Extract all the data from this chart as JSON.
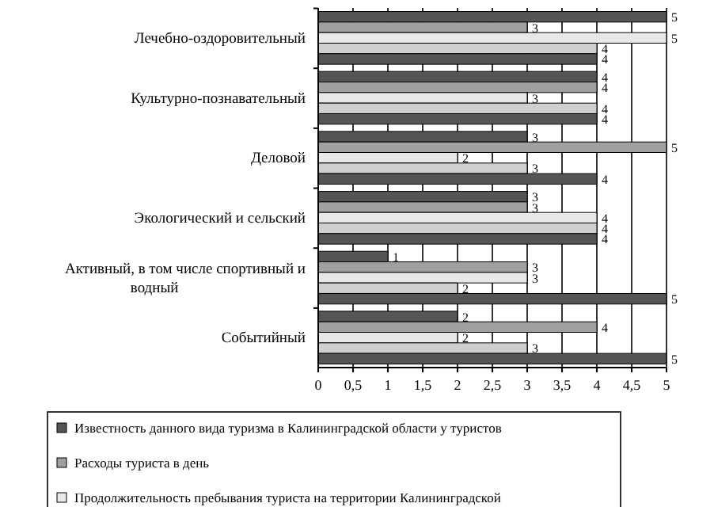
{
  "chart_data": {
    "type": "bar",
    "orientation": "horizontal",
    "categories": [
      "Лечебно-оздоровительный",
      "Культурно-познавательный",
      "Деловой",
      "Экологический и сельский",
      "Активный, в том числе спортивный и водный",
      "Событийный"
    ],
    "series": [
      {
        "name": "Известность данного вида туризма в Калининградской области у туристов",
        "color": "#555555",
        "values": [
          5,
          4,
          3,
          3,
          1,
          2
        ]
      },
      {
        "name": "Расходы туриста в день",
        "color": "#a0a0a0",
        "values": [
          3,
          4,
          5,
          3,
          3,
          4
        ]
      },
      {
        "name": "Продолжительность пребывания туриста на территории Калининградской",
        "color": "#e8e8e8",
        "values": [
          5,
          3,
          2,
          4,
          3,
          2
        ]
      },
      {
        "color": "#cfcfcf",
        "values": [
          4,
          4,
          3,
          4,
          2,
          3
        ]
      },
      {
        "color": "#555555",
        "values": [
          4,
          4,
          4,
          4,
          5,
          5
        ]
      }
    ],
    "xlim": [
      0,
      5
    ],
    "xticks": [
      0,
      {
        "value": 0.5,
        "label": "0,5"
      },
      1,
      {
        "value": 1.5,
        "label": "1,5"
      },
      2,
      {
        "value": 2.5,
        "label": "2,5"
      },
      3,
      {
        "value": 3.5,
        "label": "3,5"
      },
      4,
      {
        "value": 4.5,
        "label": "4,5"
      },
      5
    ],
    "grid": "x",
    "legend": "bottom",
    "data_labels": true
  }
}
